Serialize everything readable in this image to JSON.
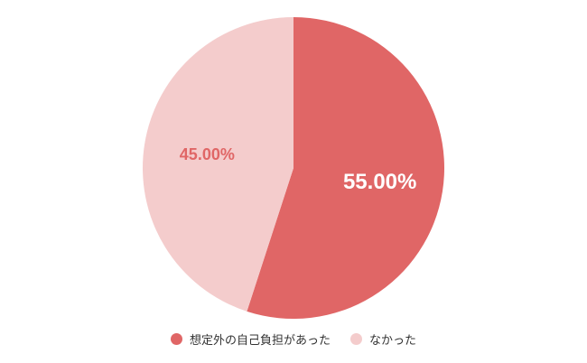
{
  "chart_data": {
    "type": "pie",
    "categories": [
      "想定外の自己負担があった",
      "なかった"
    ],
    "values": [
      55.0,
      45.0
    ],
    "data_labels": [
      "55.00%",
      "45.00%"
    ],
    "colors": [
      "#E06666",
      "#F4CCCC"
    ],
    "label_colors": [
      "#FFFFFF",
      "#E06666"
    ],
    "start_angle": "top",
    "direction": "clockwise",
    "legend_position": "bottom"
  }
}
